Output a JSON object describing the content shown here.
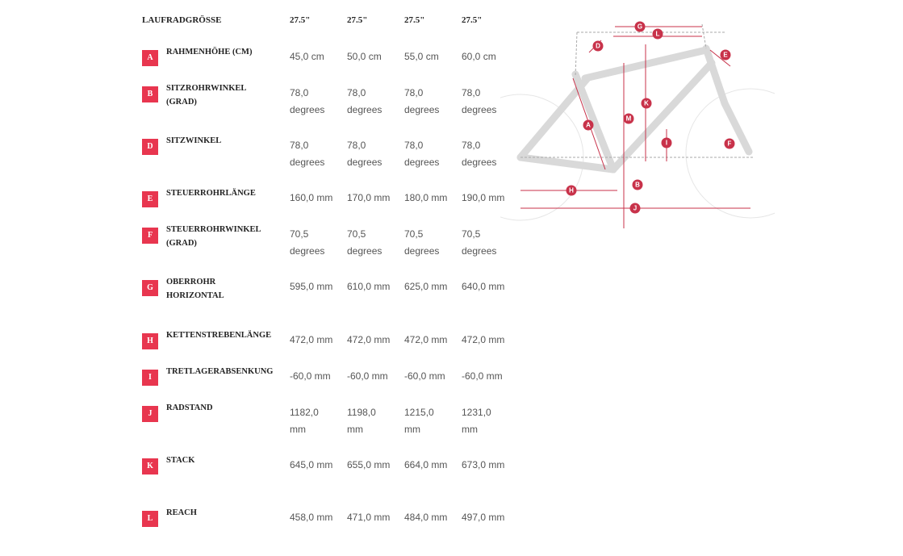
{
  "header": {
    "label": "LAUFRADGRÖSSE",
    "sizes": [
      "27.5\"",
      "27.5\"",
      "27.5\"",
      "27.5\""
    ]
  },
  "rows": [
    {
      "letter": "A",
      "label": "RAHMENHÖHE (CM)",
      "values": [
        "45,0 cm",
        "50,0 cm",
        "55,0 cm",
        "60,0 cm"
      ]
    },
    {
      "letter": "B",
      "label": "SITZROHRWINKEL (GRAD)",
      "values": [
        "78,0 degrees",
        "78,0 degrees",
        "78,0 degrees",
        "78,0 degrees"
      ]
    },
    {
      "letter": "D",
      "label": "SITZWINKEL",
      "values": [
        "78,0 degrees",
        "78,0 degrees",
        "78,0 degrees",
        "78,0 degrees"
      ]
    },
    {
      "letter": "E",
      "label": "STEUERROHRLÄNGE",
      "values": [
        "160,0 mm",
        "170,0 mm",
        "180,0 mm",
        "190,0 mm"
      ]
    },
    {
      "letter": "F",
      "label": "STEUERROHRWINKEL (GRAD)",
      "values": [
        "70,5 degrees",
        "70,5 degrees",
        "70,5 degrees",
        "70,5 degrees"
      ]
    },
    {
      "letter": "G",
      "label": "OBERROHR HORIZONTAL",
      "values": [
        "595,0 mm",
        "610,0 mm",
        "625,0 mm",
        "640,0 mm"
      ]
    },
    {
      "letter": "H",
      "label": "KETTENSTREBENLÄNGE",
      "values": [
        "472,0 mm",
        "472,0 mm",
        "472,0 mm",
        "472,0 mm"
      ]
    },
    {
      "letter": "I",
      "label": "TRETLAGERABSENKUNG",
      "values": [
        "-60,0 mm",
        "-60,0 mm",
        "-60,0 mm",
        "-60,0 mm"
      ]
    },
    {
      "letter": "J",
      "label": "RADSTAND",
      "values": [
        "1182,0 mm",
        "1198,0 mm",
        "1215,0 mm",
        "1231,0 mm"
      ]
    },
    {
      "letter": "K",
      "label": "STACK",
      "values": [
        "645,0 mm",
        "655,0 mm",
        "664,0 mm",
        "673,0 mm"
      ]
    },
    {
      "letter": "L",
      "label": "REACH",
      "values": [
        "458,0 mm",
        "471,0 mm",
        "484,0 mm",
        "497,0 mm"
      ]
    }
  ],
  "diagram": {
    "labels": [
      "G",
      "L",
      "D",
      "E",
      "K",
      "M",
      "A",
      "I",
      "F",
      "B",
      "H",
      "J"
    ]
  }
}
